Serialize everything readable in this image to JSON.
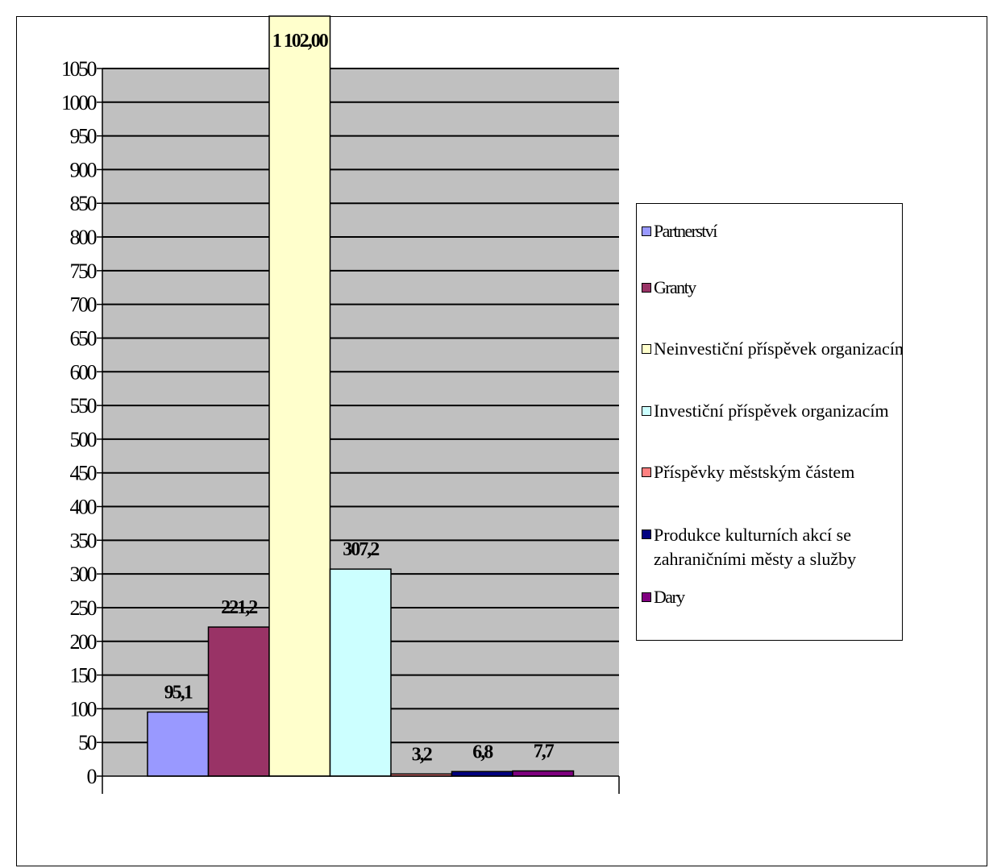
{
  "chart_data": {
    "type": "bar",
    "title": "",
    "xlabel": "",
    "ylabel": "",
    "ylim": [
      0,
      1050
    ],
    "ytick_step": 50,
    "grid": true,
    "legend_position": "right",
    "plot_background": "#c0c0c0",
    "series": [
      {
        "name": "Partnerství",
        "value": 95.1,
        "label": "95,1",
        "color": "#9999ff"
      },
      {
        "name": "Granty",
        "value": 221.2,
        "label": "221,2",
        "color": "#993366"
      },
      {
        "name": "Neinvestiční příspěvek organizacím",
        "value": 1102.0,
        "label": "1 102,00",
        "color": "#ffffcc"
      },
      {
        "name": "Investiční příspěvek organizacím",
        "value": 307.2,
        "label": "307,2",
        "color": "#ccffff"
      },
      {
        "name": "Příspěvky městským částem",
        "value": 3.2,
        "label": "3,2",
        "color": "#ff8080"
      },
      {
        "name": "Produkce kulturních akcí se zahraničními městy a služby",
        "value": 6.8,
        "label": "6,8",
        "color": "#000080"
      },
      {
        "name": "Dary",
        "value": 7.7,
        "label": "7,7",
        "color": "#800080"
      }
    ]
  },
  "legend": {
    "items": [
      {
        "text": "Partnerství"
      },
      {
        "text": "Granty"
      },
      {
        "text": "Neinvestiční příspěvek organizacím"
      },
      {
        "text": "Investiční příspěvek organizacím"
      },
      {
        "text": "Příspěvky městským částem"
      },
      {
        "text": "Produkce kulturních akcí se zahraničními městy a služby"
      },
      {
        "text": "Dary"
      }
    ]
  }
}
